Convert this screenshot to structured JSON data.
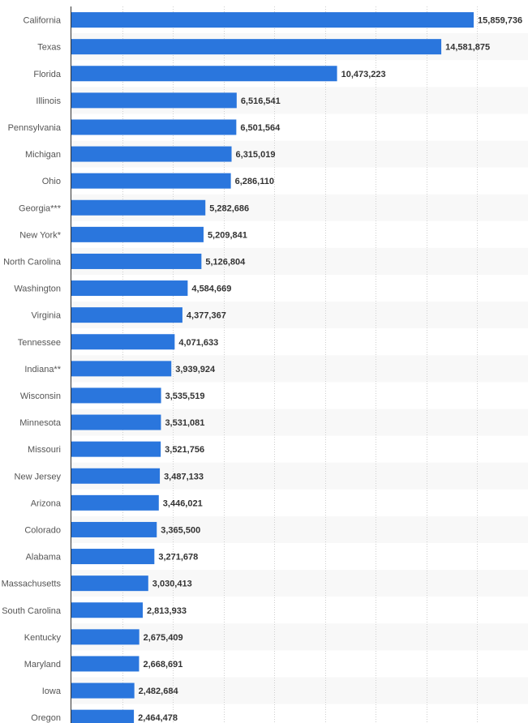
{
  "chart_data": {
    "type": "bar",
    "orientation": "horizontal",
    "title": "",
    "xlabel": "",
    "ylabel": "",
    "xlim": [
      0,
      18000000
    ],
    "grid": true,
    "bar_color": "#2a76dd",
    "categories": [
      "California",
      "Texas",
      "Florida",
      "Illinois",
      "Pennsylvania",
      "Michigan",
      "Ohio",
      "Georgia***",
      "New York*",
      "North Carolina",
      "Washington",
      "Virginia",
      "Tennessee",
      "Indiana**",
      "Wisconsin",
      "Minnesota",
      "Missouri",
      "New Jersey",
      "Arizona",
      "Colorado",
      "Alabama",
      "Massachusetts",
      "South Carolina",
      "Kentucky",
      "Maryland",
      "Iowa",
      "Oregon"
    ],
    "values": [
      15859736,
      14581875,
      10473223,
      6516541,
      6501564,
      6315019,
      6286110,
      5282686,
      5209841,
      5126804,
      4584669,
      4377367,
      4071633,
      3939924,
      3535519,
      3531081,
      3521756,
      3487133,
      3446021,
      3365500,
      3271678,
      3030413,
      2813933,
      2675409,
      2668691,
      2482684,
      2464478
    ],
    "value_labels": [
      "15,859,736",
      "14,581,875",
      "10,473,223",
      "6,516,541",
      "6,501,564",
      "6,315,019",
      "6,286,110",
      "5,282,686",
      "5,209,841",
      "5,126,804",
      "4,584,669",
      "4,377,367",
      "4,071,633",
      "3,939,924",
      "3,535,519",
      "3,531,081",
      "3,521,756",
      "3,487,133",
      "3,446,021",
      "3,365,500",
      "3,271,678",
      "3,030,413",
      "2,813,933",
      "2,675,409",
      "2,668,691",
      "2,482,684",
      "2,464,478"
    ]
  }
}
